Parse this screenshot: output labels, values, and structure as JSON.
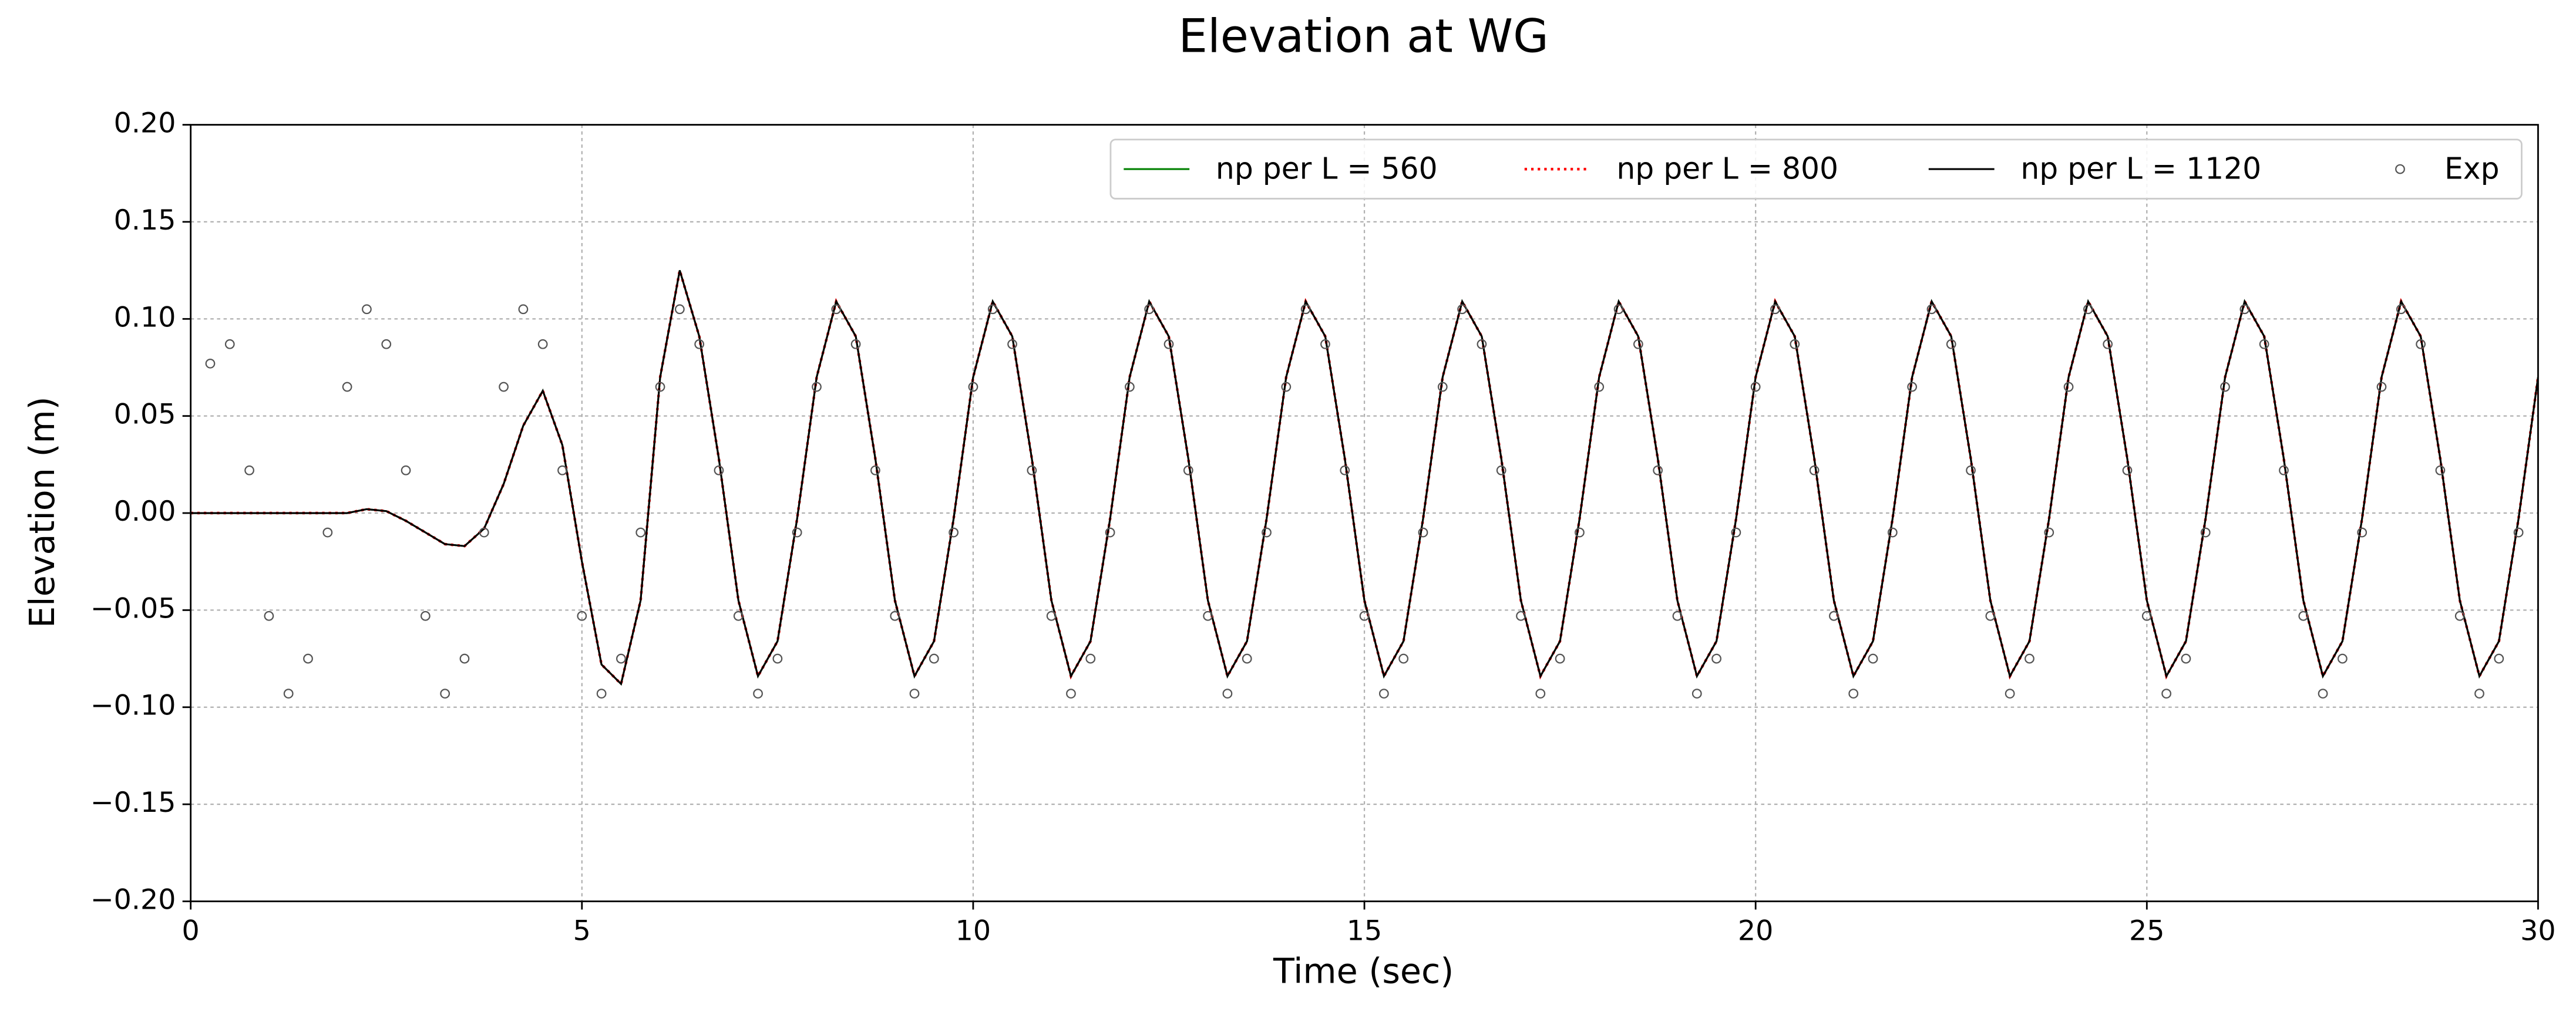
{
  "chart_data": {
    "type": "line",
    "title": "Elevation at WG",
    "x_label": "Time (sec)",
    "y_label": "Elevation (m)",
    "xlim": [
      0,
      30
    ],
    "ylim": [
      -0.2,
      0.2
    ],
    "xticks": [
      0,
      5,
      10,
      15,
      20,
      25,
      30
    ],
    "yticks": [
      {
        "value": -0.2,
        "label": "−0.20"
      },
      {
        "value": -0.15,
        "label": "−0.15"
      },
      {
        "value": -0.1,
        "label": "−0.10"
      },
      {
        "value": -0.05,
        "label": "−0.05"
      },
      {
        "value": 0,
        "label": "0.00"
      },
      {
        "value": 0.05,
        "label": "0.05"
      },
      {
        "value": 0.1,
        "label": "0.10"
      },
      {
        "value": 0.15,
        "label": "0.15"
      },
      {
        "value": 0.2,
        "label": "0.20"
      }
    ],
    "grid": true,
    "legend": "upper right",
    "x": [
      0,
      0.25,
      0.5,
      0.75,
      1,
      1.25,
      1.5,
      1.75,
      2,
      2.25,
      2.5,
      2.75,
      3,
      3.25,
      3.5,
      3.75,
      4,
      4.25,
      4.5,
      4.75,
      5,
      5.25,
      5.5,
      5.75,
      6,
      6.25,
      6.5,
      6.75,
      7,
      7.25,
      7.5,
      7.75,
      8,
      8.25,
      8.5,
      8.75,
      9,
      9.25,
      9.5,
      9.75,
      10,
      10.25,
      10.5,
      10.75,
      11,
      11.25,
      11.5,
      11.75,
      12,
      12.25,
      12.5,
      12.75,
      13,
      13.25,
      13.5,
      13.75,
      14,
      14.25,
      14.5,
      14.75,
      15,
      15.25,
      15.5,
      15.75,
      16,
      16.25,
      16.5,
      16.75,
      17,
      17.25,
      17.5,
      17.75,
      18,
      18.25,
      18.5,
      18.75,
      19,
      19.25,
      19.5,
      19.75,
      20,
      20.25,
      20.5,
      20.75,
      21,
      21.25,
      21.5,
      21.75,
      22,
      22.25,
      22.5,
      22.75,
      23,
      23.25,
      23.5,
      23.75,
      24,
      24.25,
      24.5,
      24.75,
      25,
      25.25,
      25.5,
      25.75,
      26,
      26.25,
      26.5,
      26.75,
      27,
      27.25,
      27.5,
      27.75,
      28,
      28.25,
      28.5,
      28.75,
      29,
      29.25,
      29.5,
      29.75,
      30
    ],
    "series": [
      {
        "name": "np per L = 560",
        "color": "#008000",
        "style": "solid",
        "values": [
          0,
          0,
          0,
          0,
          0,
          0,
          0,
          0,
          0,
          0.002,
          0.001,
          -0.004,
          -0.01,
          -0.016,
          -0.017,
          -0.008,
          0.015,
          0.045,
          0.063,
          0.035,
          -0.025,
          -0.078,
          -0.088,
          -0.045,
          0.07,
          0.125,
          0.091,
          0.028,
          -0.045,
          -0.084,
          -0.066,
          -0.003,
          0.07,
          0.109,
          0.091,
          0.028,
          -0.045,
          -0.084,
          -0.066,
          -0.003,
          0.07,
          0.109,
          0.091,
          0.028,
          -0.045,
          -0.084,
          -0.066,
          -0.003,
          0.07,
          0.109,
          0.091,
          0.028,
          -0.045,
          -0.084,
          -0.066,
          -0.003,
          0.07,
          0.109,
          0.091,
          0.028,
          -0.045,
          -0.084,
          -0.066,
          -0.003,
          0.07,
          0.109,
          0.091,
          0.028,
          -0.045,
          -0.084,
          -0.066,
          -0.003,
          0.07,
          0.109,
          0.091,
          0.028,
          -0.045,
          -0.084,
          -0.066,
          -0.003,
          0.07,
          0.109,
          0.091,
          0.028,
          -0.045,
          -0.084,
          -0.066,
          -0.003,
          0.07,
          0.109,
          0.091,
          0.028,
          -0.045,
          -0.084,
          -0.066,
          -0.003,
          0.07,
          0.109,
          0.091,
          0.028,
          -0.045,
          -0.084,
          -0.066,
          -0.003,
          0.07,
          0.109,
          0.091,
          0.028,
          -0.045,
          -0.084,
          -0.066,
          -0.003,
          0.07,
          0.109,
          0.091,
          0.028,
          -0.045,
          -0.084,
          -0.066,
          -0.003,
          0.07
        ]
      },
      {
        "name": "np per L = 800",
        "color": "#ff0000",
        "style": "dotted",
        "values": [
          0,
          0,
          0,
          0,
          0,
          0,
          0,
          0,
          0,
          0.002,
          0.001,
          -0.004,
          -0.01,
          -0.016,
          -0.017,
          -0.008,
          0.015,
          0.045,
          0.063,
          0.035,
          -0.025,
          -0.078,
          -0.088,
          -0.045,
          0.07,
          0.125,
          0.091,
          0.028,
          -0.045,
          -0.084,
          -0.066,
          -0.003,
          0.07,
          0.109,
          0.091,
          0.028,
          -0.045,
          -0.084,
          -0.066,
          -0.003,
          0.07,
          0.109,
          0.091,
          0.028,
          -0.045,
          -0.084,
          -0.066,
          -0.003,
          0.07,
          0.109,
          0.091,
          0.028,
          -0.045,
          -0.084,
          -0.066,
          -0.003,
          0.07,
          0.109,
          0.091,
          0.028,
          -0.045,
          -0.084,
          -0.066,
          -0.003,
          0.07,
          0.109,
          0.091,
          0.028,
          -0.045,
          -0.084,
          -0.066,
          -0.003,
          0.07,
          0.109,
          0.091,
          0.028,
          -0.045,
          -0.084,
          -0.066,
          -0.003,
          0.07,
          0.109,
          0.091,
          0.028,
          -0.045,
          -0.084,
          -0.066,
          -0.003,
          0.07,
          0.109,
          0.091,
          0.028,
          -0.045,
          -0.084,
          -0.066,
          -0.003,
          0.07,
          0.109,
          0.091,
          0.028,
          -0.045,
          -0.084,
          -0.066,
          -0.003,
          0.07,
          0.109,
          0.091,
          0.028,
          -0.045,
          -0.084,
          -0.066,
          -0.003,
          0.07,
          0.109,
          0.091,
          0.028,
          -0.045,
          -0.084,
          -0.066,
          -0.003,
          0.07
        ]
      },
      {
        "name": "np per L = 1120",
        "color": "#000000",
        "style": "solid",
        "values": [
          0,
          0,
          0,
          0,
          0,
          0,
          0,
          0,
          0,
          0.002,
          0.001,
          -0.004,
          -0.01,
          -0.016,
          -0.017,
          -0.008,
          0.015,
          0.045,
          0.063,
          0.035,
          -0.025,
          -0.078,
          -0.088,
          -0.045,
          0.07,
          0.125,
          0.091,
          0.028,
          -0.045,
          -0.084,
          -0.066,
          -0.003,
          0.07,
          0.109,
          0.091,
          0.028,
          -0.045,
          -0.084,
          -0.066,
          -0.003,
          0.07,
          0.109,
          0.091,
          0.028,
          -0.045,
          -0.084,
          -0.066,
          -0.003,
          0.07,
          0.109,
          0.091,
          0.028,
          -0.045,
          -0.084,
          -0.066,
          -0.003,
          0.07,
          0.109,
          0.091,
          0.028,
          -0.045,
          -0.084,
          -0.066,
          -0.003,
          0.07,
          0.109,
          0.091,
          0.028,
          -0.045,
          -0.084,
          -0.066,
          -0.003,
          0.07,
          0.109,
          0.091,
          0.028,
          -0.045,
          -0.084,
          -0.066,
          -0.003,
          0.07,
          0.109,
          0.091,
          0.028,
          -0.045,
          -0.084,
          -0.066,
          -0.003,
          0.07,
          0.109,
          0.091,
          0.028,
          -0.045,
          -0.084,
          -0.066,
          -0.003,
          0.07,
          0.109,
          0.091,
          0.028,
          -0.045,
          -0.084,
          -0.066,
          -0.003,
          0.07,
          0.109,
          0.091,
          0.028,
          -0.045,
          -0.084,
          -0.066,
          -0.003,
          0.07,
          0.109,
          0.091,
          0.028,
          -0.045,
          -0.084,
          -0.066,
          -0.003,
          0.07
        ]
      },
      {
        "name": "Exp",
        "color": "#555555",
        "style": "marker",
        "x": [
          0.25,
          0.5,
          0.75,
          1,
          1.25,
          1.5,
          1.75,
          2,
          2.25,
          2.5,
          2.75,
          3,
          3.25,
          3.5,
          3.75,
          4,
          4.25,
          4.5,
          4.75,
          5,
          5.25,
          5.5,
          5.75,
          6,
          6.25,
          6.5,
          6.75,
          7,
          7.25,
          7.5,
          7.75,
          8,
          8.25,
          8.5,
          8.75,
          9,
          9.25,
          9.5,
          9.75,
          10,
          10.25,
          10.5,
          10.75,
          11,
          11.25,
          11.5,
          11.75,
          12,
          12.25,
          12.5,
          12.75,
          13,
          13.25,
          13.5,
          13.75,
          14,
          14.25,
          14.5,
          14.75,
          15,
          15.25,
          15.5,
          15.75,
          16,
          16.25,
          16.5,
          16.75,
          17,
          17.25,
          17.5,
          17.75,
          18,
          18.25,
          18.5,
          18.75,
          19,
          19.25,
          19.5,
          19.75,
          20,
          20.25,
          20.5,
          20.75,
          21,
          21.25,
          21.5,
          21.75,
          22,
          22.25,
          22.5,
          22.75,
          23,
          23.25,
          23.5,
          23.75,
          24,
          24.25,
          24.5,
          24.75,
          25,
          25.25,
          25.5,
          25.75,
          26,
          26.25,
          26.5,
          26.75,
          27,
          27.25,
          27.5,
          27.75,
          28,
          28.25,
          28.5,
          28.75,
          29,
          29.25,
          29.5,
          29.75
        ],
        "values": [
          0.077,
          0.087,
          0.022,
          -0.053,
          -0.093,
          -0.075,
          -0.01,
          0.065,
          0.105,
          0.087,
          0.022,
          -0.053,
          -0.093,
          -0.075,
          -0.01,
          0.065,
          0.105,
          0.087,
          0.022,
          -0.053,
          -0.093,
          -0.075,
          -0.01,
          0.065,
          0.105,
          0.087,
          0.022,
          -0.053,
          -0.093,
          -0.075,
          -0.01,
          0.065,
          0.105,
          0.087,
          0.022,
          -0.053,
          -0.093,
          -0.075,
          -0.01,
          0.065,
          0.105,
          0.087,
          0.022,
          -0.053,
          -0.093,
          -0.075,
          -0.01,
          0.065,
          0.105,
          0.087,
          0.022,
          -0.053,
          -0.093,
          -0.075,
          -0.01,
          0.065,
          0.105,
          0.087,
          0.022,
          -0.053,
          -0.093,
          -0.075,
          -0.01,
          0.065,
          0.105,
          0.087,
          0.022,
          -0.053,
          -0.093,
          -0.075,
          -0.01,
          0.065,
          0.105,
          0.087,
          0.022,
          -0.053,
          -0.093,
          -0.075,
          -0.01,
          0.065,
          0.105,
          0.087,
          0.022,
          -0.053,
          -0.093,
          -0.075,
          -0.01,
          0.065,
          0.105,
          0.087,
          0.022,
          -0.053,
          -0.093,
          -0.075,
          -0.01,
          0.065,
          0.105,
          0.087,
          0.022,
          -0.053,
          -0.093,
          -0.075,
          -0.01,
          0.065,
          0.105,
          0.087,
          0.022,
          -0.053,
          -0.093,
          -0.075,
          -0.01,
          0.065,
          0.105,
          0.087,
          0.022,
          -0.053,
          -0.093,
          -0.075,
          -0.01
        ]
      }
    ]
  }
}
